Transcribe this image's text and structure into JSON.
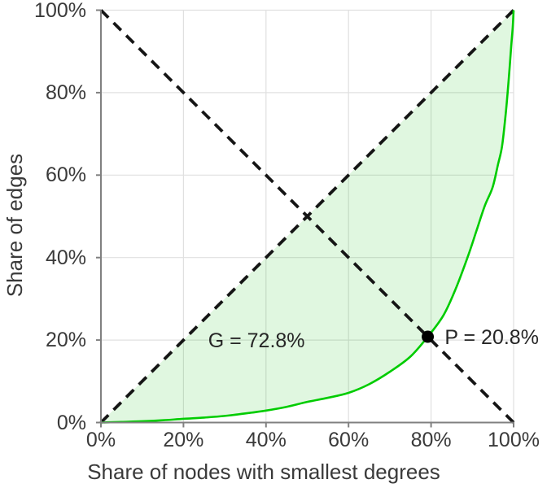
{
  "chart_data": {
    "type": "line",
    "title": "",
    "xlabel": "Share of nodes with smallest degrees",
    "ylabel": "Share of edges",
    "xlim": [
      0,
      100
    ],
    "ylim": [
      0,
      100
    ],
    "grid": true,
    "legend": "none",
    "tick_values": [
      0,
      20,
      40,
      60,
      80,
      100
    ],
    "x_tick_labels": [
      "0%",
      "20%",
      "40%",
      "60%",
      "80%",
      "100%"
    ],
    "y_tick_labels": [
      "0%",
      "20%",
      "40%",
      "60%",
      "80%",
      "100%"
    ],
    "series": [
      {
        "name": "lorenz-curve",
        "style": "solid",
        "color": "#00cc00",
        "fill": "rgba(0,190,0,0.12)",
        "x": [
          0,
          5,
          10,
          15,
          20,
          25,
          30,
          35,
          40,
          45,
          50,
          55,
          60,
          65,
          70,
          75,
          79.2,
          83,
          86,
          89,
          91,
          93,
          94.9,
          96.2,
          97.2,
          98.1,
          98.8,
          99.4,
          99.8,
          100
        ],
        "y": [
          0,
          0.15,
          0.3,
          0.55,
          0.9,
          1.2,
          1.6,
          2.2,
          2.9,
          3.8,
          5.0,
          6.0,
          7.2,
          9.3,
          12.3,
          16.0,
          20.8,
          26.0,
          32.5,
          40.5,
          46.5,
          52.5,
          57.0,
          62.5,
          67.0,
          75.0,
          83.0,
          91.0,
          96.0,
          100
        ]
      },
      {
        "name": "equality-diagonal",
        "style": "dashed",
        "color": "#151515",
        "x": [
          0,
          100
        ],
        "y": [
          0,
          100
        ]
      },
      {
        "name": "anti-diagonal",
        "style": "dashed",
        "color": "#151515",
        "x": [
          0,
          100
        ],
        "y": [
          100,
          0
        ]
      }
    ],
    "point": {
      "name": "curve-diagonal-intersection",
      "x": 79.2,
      "y": 20.8,
      "color": "#000000",
      "radius": 7.5
    },
    "annotations": {
      "gini": {
        "text": "G = 72.8%",
        "x": 37.7,
        "y": 19.8,
        "align": "center"
      },
      "pivot": {
        "text": "P = 20.8%",
        "x": 83.3,
        "y": 20.6,
        "align": "left"
      }
    },
    "colors": {
      "grid": "#e0e0e0",
      "axis": "#808080",
      "tick_text": "#3a3a3a",
      "annotation_text": "#262626",
      "background": "#ffffff"
    }
  }
}
